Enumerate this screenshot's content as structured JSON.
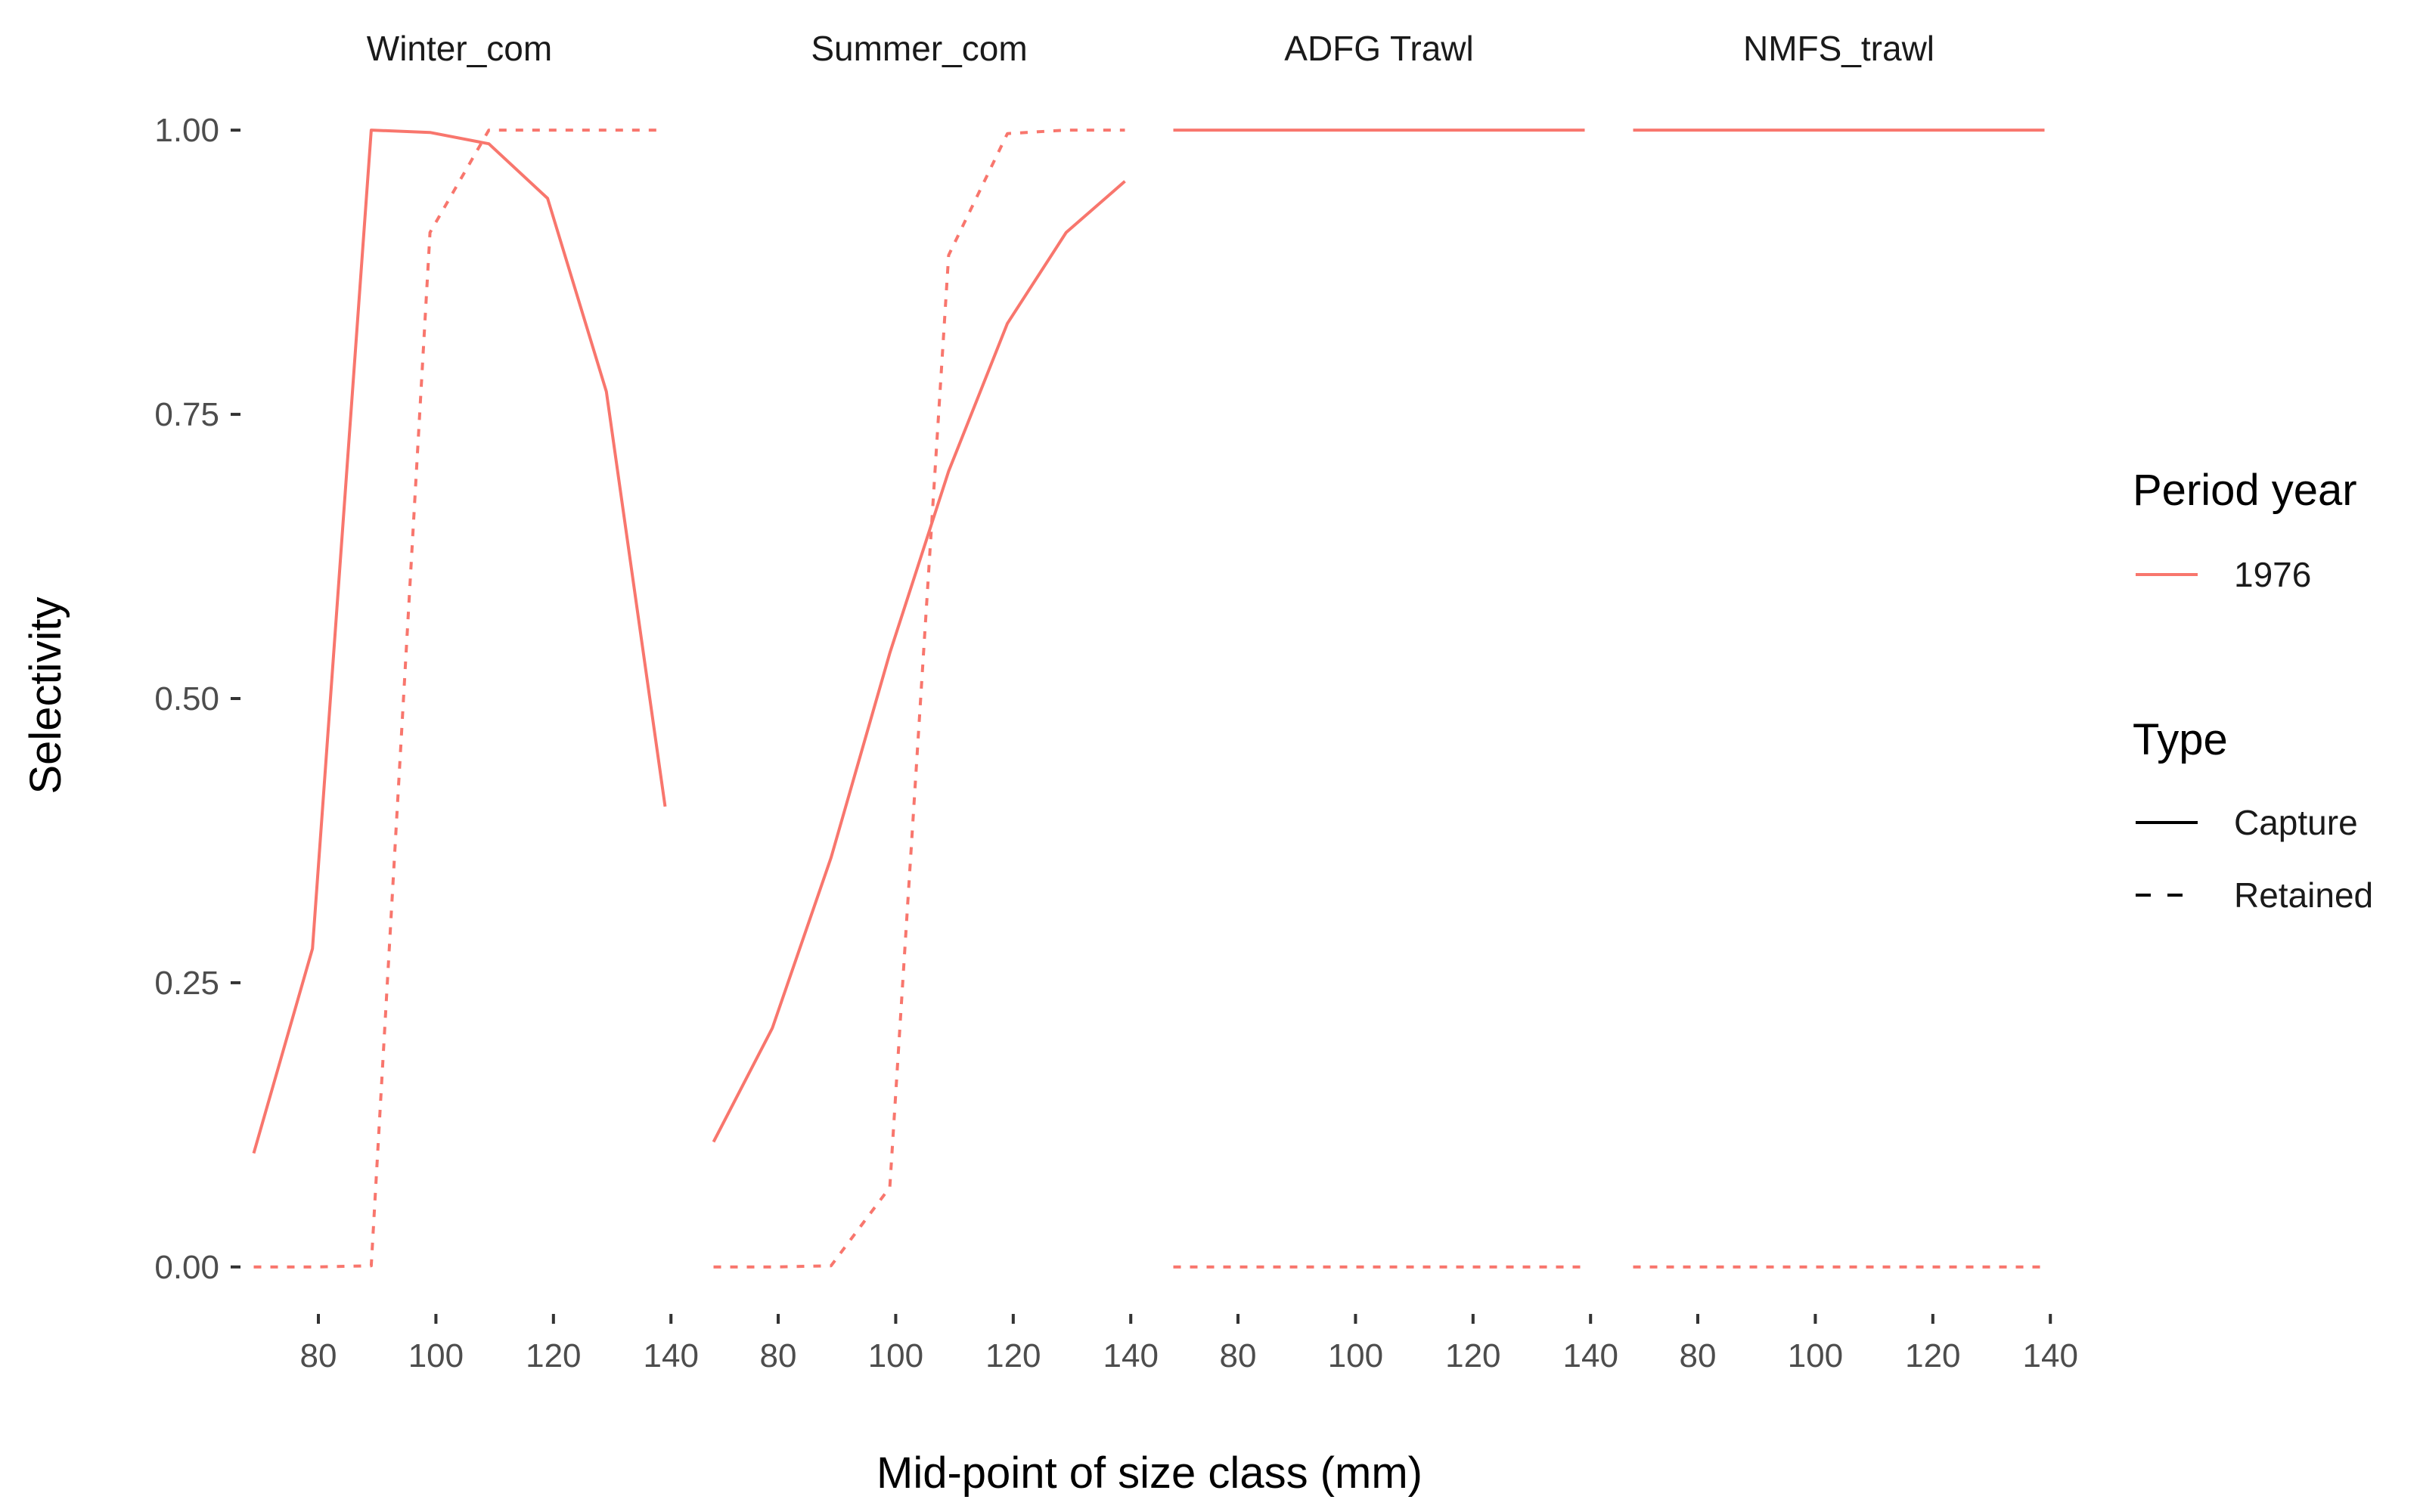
{
  "chart_data": {
    "type": "line",
    "facet_variable": "fleet",
    "xlabel": "Mid-point of size class (mm)",
    "ylabel": "Selectivity",
    "xlim": [
      67,
      141
    ],
    "ylim": [
      -0.04,
      1.04
    ],
    "x_ticks": [
      80,
      100,
      120,
      140
    ],
    "y_ticks": [
      0.0,
      0.25,
      0.5,
      0.75,
      1.0
    ],
    "y_tick_labels": [
      "0.00",
      "0.25",
      "0.50",
      "0.75",
      "1.00"
    ],
    "grid": false,
    "color": "#F8766D",
    "legend": {
      "position": "right",
      "color_title": "Period year",
      "color_entries": [
        "1976"
      ],
      "linetype_title": "Type",
      "linetype_entries": [
        {
          "label": "Capture",
          "dash": "solid"
        },
        {
          "label": "Retained",
          "dash": "dashed"
        }
      ]
    },
    "panels": [
      {
        "title": "Winter_com",
        "series": [
          {
            "type": "Capture",
            "year": "1976",
            "x": [
              69,
              79,
              89,
              99,
              109,
              119,
              129,
              139
            ],
            "y": [
              0.1,
              0.28,
              1.0,
              0.998,
              0.988,
              0.94,
              0.77,
              0.405
            ]
          },
          {
            "type": "Retained",
            "year": "1976",
            "x": [
              69,
              79,
              89,
              99,
              109,
              119,
              129,
              139
            ],
            "y": [
              0.0,
              0.0,
              0.001,
              0.91,
              1.0,
              1.0,
              1.0,
              1.0
            ]
          }
        ]
      },
      {
        "title": "Summer_com",
        "series": [
          {
            "type": "Capture",
            "year": "1976",
            "x": [
              69,
              79,
              89,
              99,
              109,
              119,
              129,
              139
            ],
            "y": [
              0.11,
              0.21,
              0.36,
              0.54,
              0.7,
              0.83,
              0.91,
              0.955
            ]
          },
          {
            "type": "Retained",
            "year": "1976",
            "x": [
              69,
              79,
              89,
              99,
              109,
              119,
              129,
              139
            ],
            "y": [
              0.0,
              0.0,
              0.001,
              0.07,
              0.89,
              0.997,
              1.0,
              1.0
            ]
          }
        ]
      },
      {
        "title": "ADFG Trawl",
        "series": [
          {
            "type": "Capture",
            "year": "1976",
            "x": [
              69,
              79,
              89,
              99,
              109,
              119,
              129,
              139
            ],
            "y": [
              1,
              1,
              1,
              1,
              1,
              1,
              1,
              1
            ]
          },
          {
            "type": "Retained",
            "year": "1976",
            "x": [
              69,
              79,
              89,
              99,
              109,
              119,
              129,
              139
            ],
            "y": [
              0,
              0,
              0,
              0,
              0,
              0,
              0,
              0
            ]
          }
        ]
      },
      {
        "title": "NMFS_trawl",
        "series": [
          {
            "type": "Capture",
            "year": "1976",
            "x": [
              69,
              79,
              89,
              99,
              109,
              119,
              129,
              139
            ],
            "y": [
              1,
              1,
              1,
              1,
              1,
              1,
              1,
              1
            ]
          },
          {
            "type": "Retained",
            "year": "1976",
            "x": [
              69,
              79,
              89,
              99,
              109,
              119,
              129,
              139
            ],
            "y": [
              0,
              0,
              0,
              0,
              0,
              0,
              0,
              0
            ]
          }
        ]
      }
    ]
  }
}
